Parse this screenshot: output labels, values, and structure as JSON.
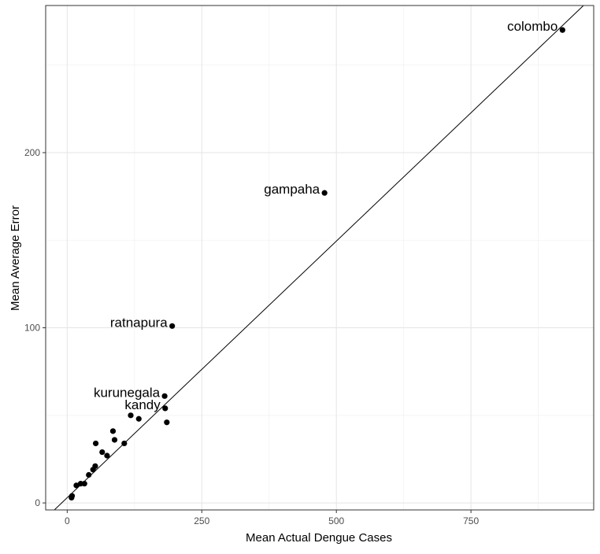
{
  "chart_data": {
    "type": "scatter",
    "xlabel": "Mean Actual Dengue Cases",
    "ylabel": "Mean Average Error",
    "xlim": [
      -40,
      978
    ],
    "ylim": [
      -4,
      284
    ],
    "x_ticks": [
      0,
      250,
      500,
      750
    ],
    "y_ticks": [
      0,
      100,
      200
    ],
    "x_tick_labels": [
      "0",
      "250",
      "500",
      "750"
    ],
    "y_tick_labels": [
      "0",
      "100",
      "200"
    ],
    "grid": true,
    "reference_line": {
      "intercept": 3,
      "slope": 0.293
    },
    "points": [
      {
        "x": 8,
        "y": 3
      },
      {
        "x": 9,
        "y": 4
      },
      {
        "x": 17,
        "y": 10
      },
      {
        "x": 25,
        "y": 11
      },
      {
        "x": 32,
        "y": 11
      },
      {
        "x": 40,
        "y": 16
      },
      {
        "x": 48,
        "y": 19
      },
      {
        "x": 52,
        "y": 21
      },
      {
        "x": 53,
        "y": 34
      },
      {
        "x": 65,
        "y": 29
      },
      {
        "x": 74,
        "y": 27
      },
      {
        "x": 85,
        "y": 41
      },
      {
        "x": 88,
        "y": 36
      },
      {
        "x": 106,
        "y": 34
      },
      {
        "x": 118,
        "y": 50
      },
      {
        "x": 133,
        "y": 48
      },
      {
        "x": 181,
        "y": 61
      },
      {
        "x": 182,
        "y": 54
      },
      {
        "x": 185,
        "y": 46
      },
      {
        "x": 195,
        "y": 101
      },
      {
        "x": 478,
        "y": 177
      },
      {
        "x": 920,
        "y": 270
      }
    ],
    "labels": [
      {
        "text": "colombo",
        "x": 920,
        "y": 270
      },
      {
        "text": "gampaha",
        "x": 478,
        "y": 177
      },
      {
        "text": "ratnapura",
        "x": 195,
        "y": 101
      },
      {
        "text": "kurunegala",
        "x": 181,
        "y": 61
      },
      {
        "text": "kandy",
        "x": 182,
        "y": 54
      }
    ]
  }
}
